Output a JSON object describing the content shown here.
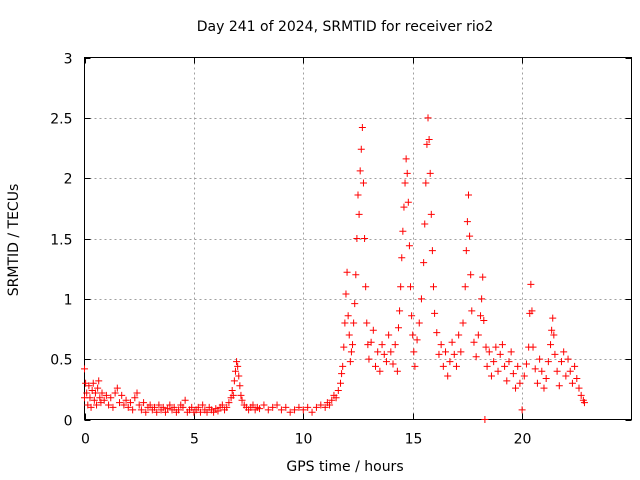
{
  "chart_data": {
    "type": "scatter",
    "title": "Day 241 of 2024, SRMTID for receiver rio2",
    "xlabel": "GPS time / hours",
    "ylabel": "SRMTID / TECUs",
    "xlim": [
      0,
      25
    ],
    "ylim": [
      0,
      3
    ],
    "x_ticks": [
      0,
      5,
      10,
      15,
      20
    ],
    "x_tick_labels": [
      "0",
      "5",
      "10",
      "15",
      "20"
    ],
    "y_ticks": [
      0,
      0.5,
      1,
      1.5,
      2,
      2.5,
      3
    ],
    "y_tick_labels": [
      "0",
      "0.5",
      "1",
      "1.5",
      "2",
      "2.5",
      "3"
    ],
    "grid": true,
    "marker": "plus",
    "color": "#ff0000",
    "series": [
      {
        "name": "SRMTID",
        "points": [
          [
            0.0,
            0.18
          ],
          [
            0.0,
            0.42
          ],
          [
            0.05,
            0.3
          ],
          [
            0.1,
            0.22
          ],
          [
            0.15,
            0.12
          ],
          [
            0.2,
            0.28
          ],
          [
            0.25,
            0.18
          ],
          [
            0.3,
            0.1
          ],
          [
            0.35,
            0.24
          ],
          [
            0.4,
            0.3
          ],
          [
            0.45,
            0.16
          ],
          [
            0.5,
            0.22
          ],
          [
            0.55,
            0.12
          ],
          [
            0.6,
            0.26
          ],
          [
            0.65,
            0.32
          ],
          [
            0.7,
            0.18
          ],
          [
            0.75,
            0.14
          ],
          [
            0.8,
            0.22
          ],
          [
            0.9,
            0.16
          ],
          [
            1.0,
            0.2
          ],
          [
            1.1,
            0.12
          ],
          [
            1.2,
            0.18
          ],
          [
            1.3,
            0.1
          ],
          [
            1.4,
            0.22
          ],
          [
            1.5,
            0.26
          ],
          [
            1.6,
            0.14
          ],
          [
            1.7,
            0.2
          ],
          [
            1.8,
            0.12
          ],
          [
            1.9,
            0.16
          ],
          [
            2.0,
            0.1
          ],
          [
            2.1,
            0.14
          ],
          [
            2.2,
            0.08
          ],
          [
            2.3,
            0.18
          ],
          [
            2.4,
            0.22
          ],
          [
            2.5,
            0.12
          ],
          [
            2.6,
            0.08
          ],
          [
            2.7,
            0.14
          ],
          [
            2.8,
            0.06
          ],
          [
            2.9,
            0.1
          ],
          [
            3.0,
            0.12
          ],
          [
            3.1,
            0.08
          ],
          [
            3.2,
            0.1
          ],
          [
            3.3,
            0.06
          ],
          [
            3.4,
            0.12
          ],
          [
            3.5,
            0.08
          ],
          [
            3.6,
            0.1
          ],
          [
            3.7,
            0.06
          ],
          [
            3.8,
            0.09
          ],
          [
            3.9,
            0.12
          ],
          [
            4.0,
            0.08
          ],
          [
            4.1,
            0.1
          ],
          [
            4.2,
            0.06
          ],
          [
            4.3,
            0.08
          ],
          [
            4.4,
            0.12
          ],
          [
            4.5,
            0.1
          ],
          [
            4.6,
            0.16
          ],
          [
            4.7,
            0.06
          ],
          [
            4.8,
            0.08
          ],
          [
            4.9,
            0.1
          ],
          [
            5.0,
            0.06
          ],
          [
            5.1,
            0.08
          ],
          [
            5.2,
            0.1
          ],
          [
            5.3,
            0.06
          ],
          [
            5.4,
            0.12
          ],
          [
            5.5,
            0.08
          ],
          [
            5.6,
            0.06
          ],
          [
            5.7,
            0.1
          ],
          [
            5.8,
            0.08
          ],
          [
            5.9,
            0.06
          ],
          [
            6.0,
            0.09
          ],
          [
            6.1,
            0.07
          ],
          [
            6.2,
            0.1
          ],
          [
            6.3,
            0.12
          ],
          [
            6.4,
            0.08
          ],
          [
            6.5,
            0.1
          ],
          [
            6.6,
            0.14
          ],
          [
            6.7,
            0.18
          ],
          [
            6.75,
            0.24
          ],
          [
            6.8,
            0.2
          ],
          [
            6.85,
            0.32
          ],
          [
            6.9,
            0.4
          ],
          [
            6.95,
            0.48
          ],
          [
            7.0,
            0.44
          ],
          [
            7.05,
            0.36
          ],
          [
            7.1,
            0.28
          ],
          [
            7.15,
            0.2
          ],
          [
            7.2,
            0.16
          ],
          [
            7.3,
            0.12
          ],
          [
            7.4,
            0.1
          ],
          [
            7.5,
            0.08
          ],
          [
            7.6,
            0.1
          ],
          [
            7.7,
            0.12
          ],
          [
            7.8,
            0.08
          ],
          [
            7.9,
            0.1
          ],
          [
            8.0,
            0.09
          ],
          [
            8.2,
            0.12
          ],
          [
            8.4,
            0.08
          ],
          [
            8.6,
            0.1
          ],
          [
            8.8,
            0.12
          ],
          [
            9.0,
            0.08
          ],
          [
            9.2,
            0.1
          ],
          [
            9.4,
            0.06
          ],
          [
            9.6,
            0.08
          ],
          [
            9.8,
            0.1
          ],
          [
            10.0,
            0.08
          ],
          [
            10.2,
            0.1
          ],
          [
            10.4,
            0.06
          ],
          [
            10.6,
            0.1
          ],
          [
            10.8,
            0.12
          ],
          [
            11.0,
            0.1
          ],
          [
            11.1,
            0.14
          ],
          [
            11.2,
            0.12
          ],
          [
            11.3,
            0.16
          ],
          [
            11.4,
            0.2
          ],
          [
            11.5,
            0.18
          ],
          [
            11.6,
            0.24
          ],
          [
            11.7,
            0.3
          ],
          [
            11.75,
            0.38
          ],
          [
            11.8,
            0.44
          ],
          [
            11.85,
            0.6
          ],
          [
            11.9,
            0.8
          ],
          [
            11.95,
            1.04
          ],
          [
            12.0,
            1.22
          ],
          [
            12.05,
            0.86
          ],
          [
            12.1,
            0.7
          ],
          [
            12.15,
            0.48
          ],
          [
            12.2,
            0.56
          ],
          [
            12.25,
            0.62
          ],
          [
            12.3,
            0.8
          ],
          [
            12.35,
            0.96
          ],
          [
            12.4,
            1.2
          ],
          [
            12.45,
            1.5
          ],
          [
            12.5,
            1.86
          ],
          [
            12.55,
            1.7
          ],
          [
            12.6,
            2.06
          ],
          [
            12.65,
            2.24
          ],
          [
            12.7,
            2.42
          ],
          [
            12.75,
            1.96
          ],
          [
            12.8,
            1.5
          ],
          [
            12.85,
            1.1
          ],
          [
            12.9,
            0.8
          ],
          [
            12.95,
            0.62
          ],
          [
            13.0,
            0.5
          ],
          [
            13.1,
            0.64
          ],
          [
            13.2,
            0.74
          ],
          [
            13.3,
            0.44
          ],
          [
            13.4,
            0.56
          ],
          [
            13.5,
            0.4
          ],
          [
            13.6,
            0.62
          ],
          [
            13.7,
            0.54
          ],
          [
            13.8,
            0.48
          ],
          [
            13.9,
            0.7
          ],
          [
            14.0,
            0.56
          ],
          [
            14.1,
            0.46
          ],
          [
            14.2,
            0.62
          ],
          [
            14.3,
            0.4
          ],
          [
            14.35,
            0.76
          ],
          [
            14.4,
            0.9
          ],
          [
            14.45,
            1.1
          ],
          [
            14.5,
            1.34
          ],
          [
            14.55,
            1.56
          ],
          [
            14.6,
            1.76
          ],
          [
            14.65,
            1.96
          ],
          [
            14.7,
            2.16
          ],
          [
            14.75,
            2.04
          ],
          [
            14.8,
            1.8
          ],
          [
            14.85,
            1.44
          ],
          [
            14.9,
            1.1
          ],
          [
            14.95,
            0.86
          ],
          [
            15.0,
            0.7
          ],
          [
            15.05,
            0.56
          ],
          [
            15.1,
            0.44
          ],
          [
            15.2,
            0.66
          ],
          [
            15.3,
            0.8
          ],
          [
            15.4,
            1.0
          ],
          [
            15.5,
            1.3
          ],
          [
            15.55,
            1.62
          ],
          [
            15.6,
            1.96
          ],
          [
            15.65,
            2.28
          ],
          [
            15.7,
            2.5
          ],
          [
            15.75,
            2.32
          ],
          [
            15.8,
            2.04
          ],
          [
            15.85,
            1.7
          ],
          [
            15.9,
            1.4
          ],
          [
            15.95,
            1.1
          ],
          [
            16.0,
            0.88
          ],
          [
            16.1,
            0.72
          ],
          [
            16.2,
            0.54
          ],
          [
            16.3,
            0.62
          ],
          [
            16.4,
            0.44
          ],
          [
            16.5,
            0.56
          ],
          [
            16.6,
            0.36
          ],
          [
            16.7,
            0.48
          ],
          [
            16.8,
            0.64
          ],
          [
            16.9,
            0.54
          ],
          [
            17.0,
            0.44
          ],
          [
            17.1,
            0.7
          ],
          [
            17.2,
            0.56
          ],
          [
            17.3,
            0.8
          ],
          [
            17.4,
            1.1
          ],
          [
            17.45,
            1.4
          ],
          [
            17.5,
            1.64
          ],
          [
            17.55,
            1.86
          ],
          [
            17.6,
            1.52
          ],
          [
            17.65,
            1.2
          ],
          [
            17.7,
            0.9
          ],
          [
            17.8,
            0.64
          ],
          [
            17.9,
            0.52
          ],
          [
            18.0,
            0.7
          ],
          [
            18.1,
            0.86
          ],
          [
            18.15,
            1.0
          ],
          [
            18.2,
            1.18
          ],
          [
            18.25,
            0.82
          ],
          [
            18.3,
            0.0
          ],
          [
            18.35,
            0.6
          ],
          [
            18.4,
            0.44
          ],
          [
            18.5,
            0.56
          ],
          [
            18.6,
            0.36
          ],
          [
            18.7,
            0.48
          ],
          [
            18.8,
            0.6
          ],
          [
            18.9,
            0.4
          ],
          [
            19.0,
            0.54
          ],
          [
            19.1,
            0.62
          ],
          [
            19.2,
            0.44
          ],
          [
            19.3,
            0.32
          ],
          [
            19.4,
            0.48
          ],
          [
            19.5,
            0.56
          ],
          [
            19.6,
            0.38
          ],
          [
            19.7,
            0.26
          ],
          [
            19.8,
            0.44
          ],
          [
            19.9,
            0.3
          ],
          [
            20.0,
            0.08
          ],
          [
            20.1,
            0.36
          ],
          [
            20.2,
            0.46
          ],
          [
            20.3,
            0.6
          ],
          [
            20.35,
            0.88
          ],
          [
            20.4,
            1.12
          ],
          [
            20.45,
            0.9
          ],
          [
            20.5,
            0.6
          ],
          [
            20.6,
            0.42
          ],
          [
            20.7,
            0.3
          ],
          [
            20.8,
            0.5
          ],
          [
            20.9,
            0.4
          ],
          [
            21.0,
            0.26
          ],
          [
            21.1,
            0.34
          ],
          [
            21.2,
            0.48
          ],
          [
            21.3,
            0.62
          ],
          [
            21.35,
            0.74
          ],
          [
            21.4,
            0.84
          ],
          [
            21.45,
            0.7
          ],
          [
            21.5,
            0.54
          ],
          [
            21.6,
            0.4
          ],
          [
            21.7,
            0.28
          ],
          [
            21.8,
            0.48
          ],
          [
            21.9,
            0.56
          ],
          [
            22.0,
            0.36
          ],
          [
            22.1,
            0.5
          ],
          [
            22.2,
            0.4
          ],
          [
            22.3,
            0.3
          ],
          [
            22.4,
            0.44
          ],
          [
            22.5,
            0.34
          ],
          [
            22.6,
            0.26
          ],
          [
            22.7,
            0.2
          ],
          [
            22.8,
            0.16
          ],
          [
            22.85,
            0.14
          ]
        ]
      }
    ]
  }
}
